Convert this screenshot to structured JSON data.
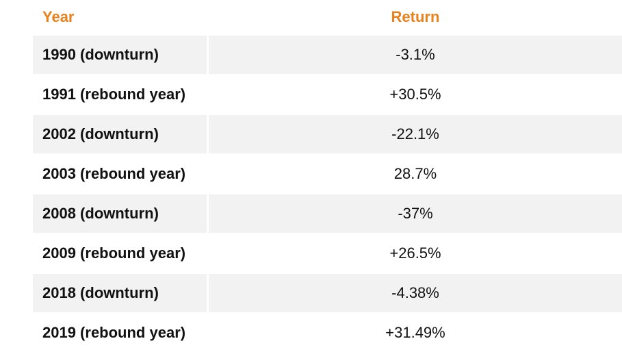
{
  "table": {
    "header": [
      "Year",
      "Return"
    ],
    "rows": [
      [
        "1990 (downturn)",
        "-3.1%"
      ],
      [
        "1991 (rebound year)",
        "+30.5%"
      ],
      [
        "2002 (downturn)",
        "-22.1%"
      ],
      [
        "2003 (rebound year)",
        "28.7%"
      ],
      [
        "2008 (downturn)",
        "-37%"
      ],
      [
        "2009 (rebound year)",
        "+26.5%"
      ],
      [
        "2018 (downturn)",
        "-4.38%"
      ],
      [
        "2019 (rebound year)",
        "+31.49%"
      ]
    ]
  }
}
